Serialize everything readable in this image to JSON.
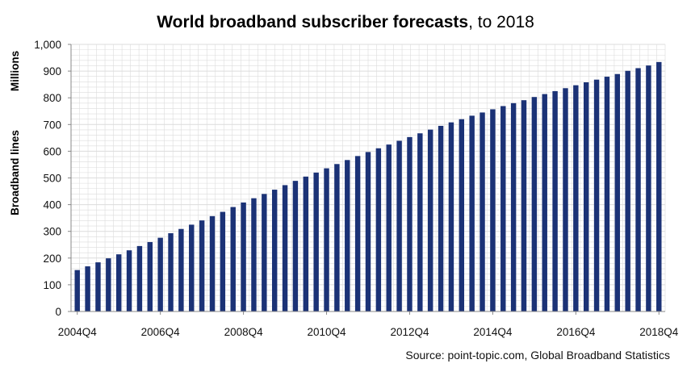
{
  "title": {
    "bold": "World broadband subscriber forecasts",
    "rest": ", to 2018"
  },
  "source": "Source: point-topic.com, Global Broadband Statistics",
  "colors": {
    "bar": "#1b3276",
    "grid": "#dcdcdc",
    "axis": "#888888"
  },
  "chart_data": {
    "type": "bar",
    "title": "World broadband subscriber forecasts, to 2018",
    "ylabel_primary": "Broadband lines",
    "ylabel_unit": "Millions",
    "ylim": [
      0,
      1000
    ],
    "yticks": [
      "0",
      "100",
      "200",
      "300",
      "400",
      "500",
      "600",
      "700",
      "800",
      "900",
      "1,000"
    ],
    "x_tick_labels": [
      "2004Q4",
      "2006Q4",
      "2008Q4",
      "2010Q4",
      "2012Q4",
      "2014Q4",
      "2016Q4",
      "2018Q4"
    ],
    "grid": true,
    "categories": [
      "2004Q4",
      "2005Q1",
      "2005Q2",
      "2005Q3",
      "2005Q4",
      "2006Q1",
      "2006Q2",
      "2006Q3",
      "2006Q4",
      "2007Q1",
      "2007Q2",
      "2007Q3",
      "2007Q4",
      "2008Q1",
      "2008Q2",
      "2008Q3",
      "2008Q4",
      "2009Q1",
      "2009Q2",
      "2009Q3",
      "2009Q4",
      "2010Q1",
      "2010Q2",
      "2010Q3",
      "2010Q4",
      "2011Q1",
      "2011Q2",
      "2011Q3",
      "2011Q4",
      "2012Q1",
      "2012Q2",
      "2012Q3",
      "2012Q4",
      "2013Q1",
      "2013Q2",
      "2013Q3",
      "2013Q4",
      "2014Q1",
      "2014Q2",
      "2014Q3",
      "2014Q4",
      "2015Q1",
      "2015Q2",
      "2015Q3",
      "2015Q4",
      "2016Q1",
      "2016Q2",
      "2016Q3",
      "2016Q4",
      "2017Q1",
      "2017Q2",
      "2017Q3",
      "2017Q4",
      "2018Q1",
      "2018Q2",
      "2018Q3",
      "2018Q4"
    ],
    "values": [
      155,
      169,
      184,
      199,
      214,
      229,
      245,
      260,
      276,
      293,
      309,
      325,
      341,
      357,
      373,
      391,
      408,
      424,
      440,
      456,
      473,
      489,
      505,
      520,
      536,
      552,
      567,
      582,
      597,
      611,
      625,
      639,
      653,
      667,
      681,
      695,
      708,
      720,
      733,
      745,
      757,
      769,
      780,
      791,
      803,
      814,
      825,
      836,
      847,
      858,
      868,
      879,
      889,
      901,
      911,
      921,
      934
    ]
  }
}
